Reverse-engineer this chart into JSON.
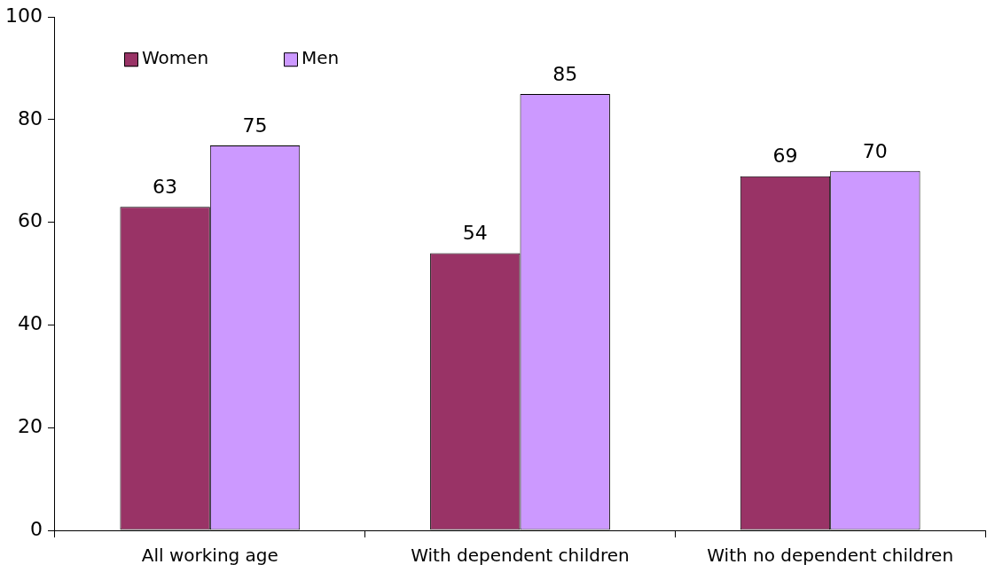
{
  "chart_data": {
    "type": "bar",
    "categories": [
      "All working age",
      "With dependent children",
      "With no dependent children"
    ],
    "series": [
      {
        "name": "Women",
        "color": "#993366",
        "values": [
          63,
          54,
          69
        ]
      },
      {
        "name": "Men",
        "color": "#cc99ff",
        "values": [
          75,
          85,
          70
        ]
      }
    ],
    "ylim": [
      0,
      100
    ],
    "yticks": [
      0,
      20,
      40,
      60,
      80,
      100
    ],
    "grid": false,
    "legend": "top left",
    "data_labels": true
  }
}
